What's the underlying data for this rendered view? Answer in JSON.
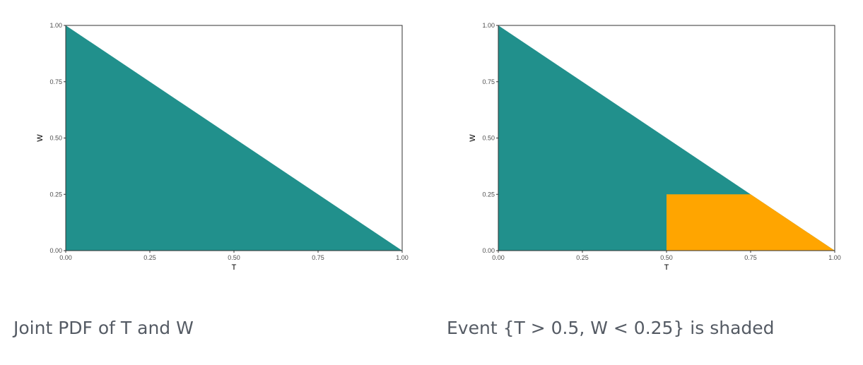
{
  "colors": {
    "region": "#21908C",
    "event": "#FFA500",
    "frame": "#333333"
  },
  "panels": [
    {
      "caption": "Joint PDF of T and W",
      "chart_data": {
        "type": "area",
        "title": "",
        "xlabel": "T",
        "ylabel": "W",
        "xlim": [
          0,
          1
        ],
        "ylim": [
          0,
          1
        ],
        "x_ticks": [
          0,
          0.25,
          0.5,
          0.75,
          1
        ],
        "y_ticks": [
          0,
          0.25,
          0.5,
          0.75,
          1
        ],
        "x_tick_labels": [
          "0.00",
          "0.25",
          "0.50",
          "0.75",
          "1.00"
        ],
        "y_tick_labels": [
          "0.00",
          "0.25",
          "0.50",
          "0.75",
          "1.00"
        ],
        "grid": false,
        "regions": [
          {
            "vertices": [
              [
                0,
                0
              ],
              [
                0,
                1
              ],
              [
                1,
                0
              ]
            ],
            "color": "#21908C"
          }
        ]
      }
    },
    {
      "caption": "Event {T > 0.5, W < 0.25} is shaded",
      "chart_data": {
        "type": "area",
        "title": "",
        "xlabel": "T",
        "ylabel": "W",
        "xlim": [
          0,
          1
        ],
        "ylim": [
          0,
          1
        ],
        "x_ticks": [
          0,
          0.25,
          0.5,
          0.75,
          1
        ],
        "y_ticks": [
          0,
          0.25,
          0.5,
          0.75,
          1
        ],
        "x_tick_labels": [
          "0.00",
          "0.25",
          "0.50",
          "0.75",
          "1.00"
        ],
        "y_tick_labels": [
          "0.00",
          "0.25",
          "0.50",
          "0.75",
          "1.00"
        ],
        "grid": false,
        "regions": [
          {
            "vertices": [
              [
                0,
                0
              ],
              [
                0,
                1
              ],
              [
                1,
                0
              ]
            ],
            "color": "#21908C"
          },
          {
            "vertices": [
              [
                0.5,
                0
              ],
              [
                0.5,
                0.25
              ],
              [
                0.75,
                0.25
              ],
              [
                1,
                0
              ]
            ],
            "color": "#FFA500"
          }
        ]
      }
    }
  ]
}
